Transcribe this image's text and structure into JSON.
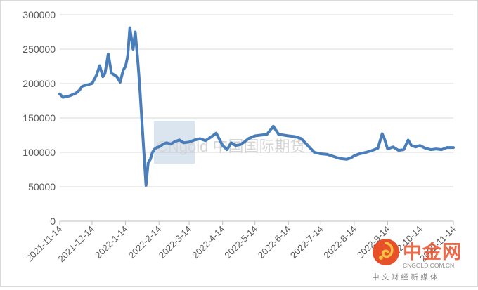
{
  "chart_data": {
    "type": "line",
    "title": "",
    "xlabel": "",
    "ylabel": "",
    "ylim": [
      0,
      300000
    ],
    "yticks": [
      "0",
      "50000",
      "100000",
      "150000",
      "200000",
      "250000",
      "300000"
    ],
    "xticks": [
      "2021-11-14",
      "2021-12-14",
      "2022-1-14",
      "2022-2-14",
      "2022-3-14",
      "2022-4-14",
      "2022-5-14",
      "2022-6-14",
      "2022-7-14",
      "2022-8-14",
      "2022-9-14",
      "2022-10-14",
      "2022-11-14"
    ],
    "grid": true,
    "legend": "none",
    "line_color": "#4a7ebb",
    "series": [
      {
        "name": "",
        "x": [
          "2021-11-14",
          "2021-11-17",
          "2021-11-20",
          "2021-11-23",
          "2021-11-26",
          "2021-11-29",
          "2021-12-02",
          "2021-12-05",
          "2021-12-09",
          "2021-12-14",
          "2021-12-18",
          "2021-12-21",
          "2021-12-24",
          "2021-12-26",
          "2021-12-29",
          "2022-01-01",
          "2022-01-04",
          "2022-01-06",
          "2022-01-09",
          "2022-01-12",
          "2022-01-14",
          "2022-01-16",
          "2022-01-18",
          "2022-01-21",
          "2022-01-23",
          "2022-01-25",
          "2022-01-27",
          "2022-01-29",
          "2022-01-31",
          "2022-02-02",
          "2022-02-04",
          "2022-02-06",
          "2022-02-08",
          "2022-02-10",
          "2022-02-12",
          "2022-02-14",
          "2022-02-16",
          "2022-02-18",
          "2022-02-21",
          "2022-02-25",
          "2022-03-01",
          "2022-03-05",
          "2022-03-09",
          "2022-03-14",
          "2022-03-19",
          "2022-03-24",
          "2022-03-29",
          "2022-04-03",
          "2022-04-08",
          "2022-04-14",
          "2022-04-18",
          "2022-04-22",
          "2022-04-26",
          "2022-04-30",
          "2022-05-04",
          "2022-05-08",
          "2022-05-14",
          "2022-05-19",
          "2022-05-25",
          "2022-05-31",
          "2022-06-05",
          "2022-06-10",
          "2022-06-14",
          "2022-06-20",
          "2022-06-26",
          "2022-07-02",
          "2022-07-08",
          "2022-07-14",
          "2022-07-20",
          "2022-07-26",
          "2022-08-01",
          "2022-08-07",
          "2022-08-11",
          "2022-08-14",
          "2022-08-19",
          "2022-08-25",
          "2022-08-31",
          "2022-09-05",
          "2022-09-09",
          "2022-09-11",
          "2022-09-14",
          "2022-09-19",
          "2022-09-24",
          "2022-09-29",
          "2022-10-03",
          "2022-10-06",
          "2022-10-10",
          "2022-10-14",
          "2022-10-19",
          "2022-10-24",
          "2022-10-29",
          "2022-11-03",
          "2022-11-08",
          "2022-11-14"
        ],
        "values": [
          185000,
          180000,
          181000,
          182000,
          184000,
          186000,
          190000,
          196000,
          198000,
          200000,
          212000,
          226000,
          210000,
          215000,
          243000,
          215000,
          212000,
          210000,
          202000,
          220000,
          225000,
          240000,
          281000,
          250000,
          275000,
          240000,
          200000,
          150000,
          100000,
          52000,
          85000,
          90000,
          100000,
          105000,
          107000,
          108000,
          110000,
          112000,
          114000,
          112000,
          116000,
          118000,
          114000,
          115000,
          118000,
          120000,
          117000,
          122000,
          128000,
          110000,
          104000,
          114000,
          110000,
          111000,
          115000,
          120000,
          124000,
          125000,
          126000,
          138000,
          126000,
          125000,
          124000,
          123000,
          120000,
          110000,
          100000,
          98000,
          97000,
          94000,
          91000,
          90000,
          92000,
          95000,
          98000,
          100000,
          103000,
          106000,
          127000,
          120000,
          105000,
          108000,
          103000,
          104000,
          118000,
          110000,
          108000,
          110000,
          106000,
          104000,
          105000,
          104000,
          107000,
          107000
        ]
      }
    ]
  },
  "watermark": {
    "center_text": "CNgold 中国国际期货",
    "brand_name": "中金网",
    "brand_url": "CNGOLD.COM.CN",
    "brand_tagline": "中 文 财 经 新 媒 体",
    "brand_color": "#e8502a"
  }
}
